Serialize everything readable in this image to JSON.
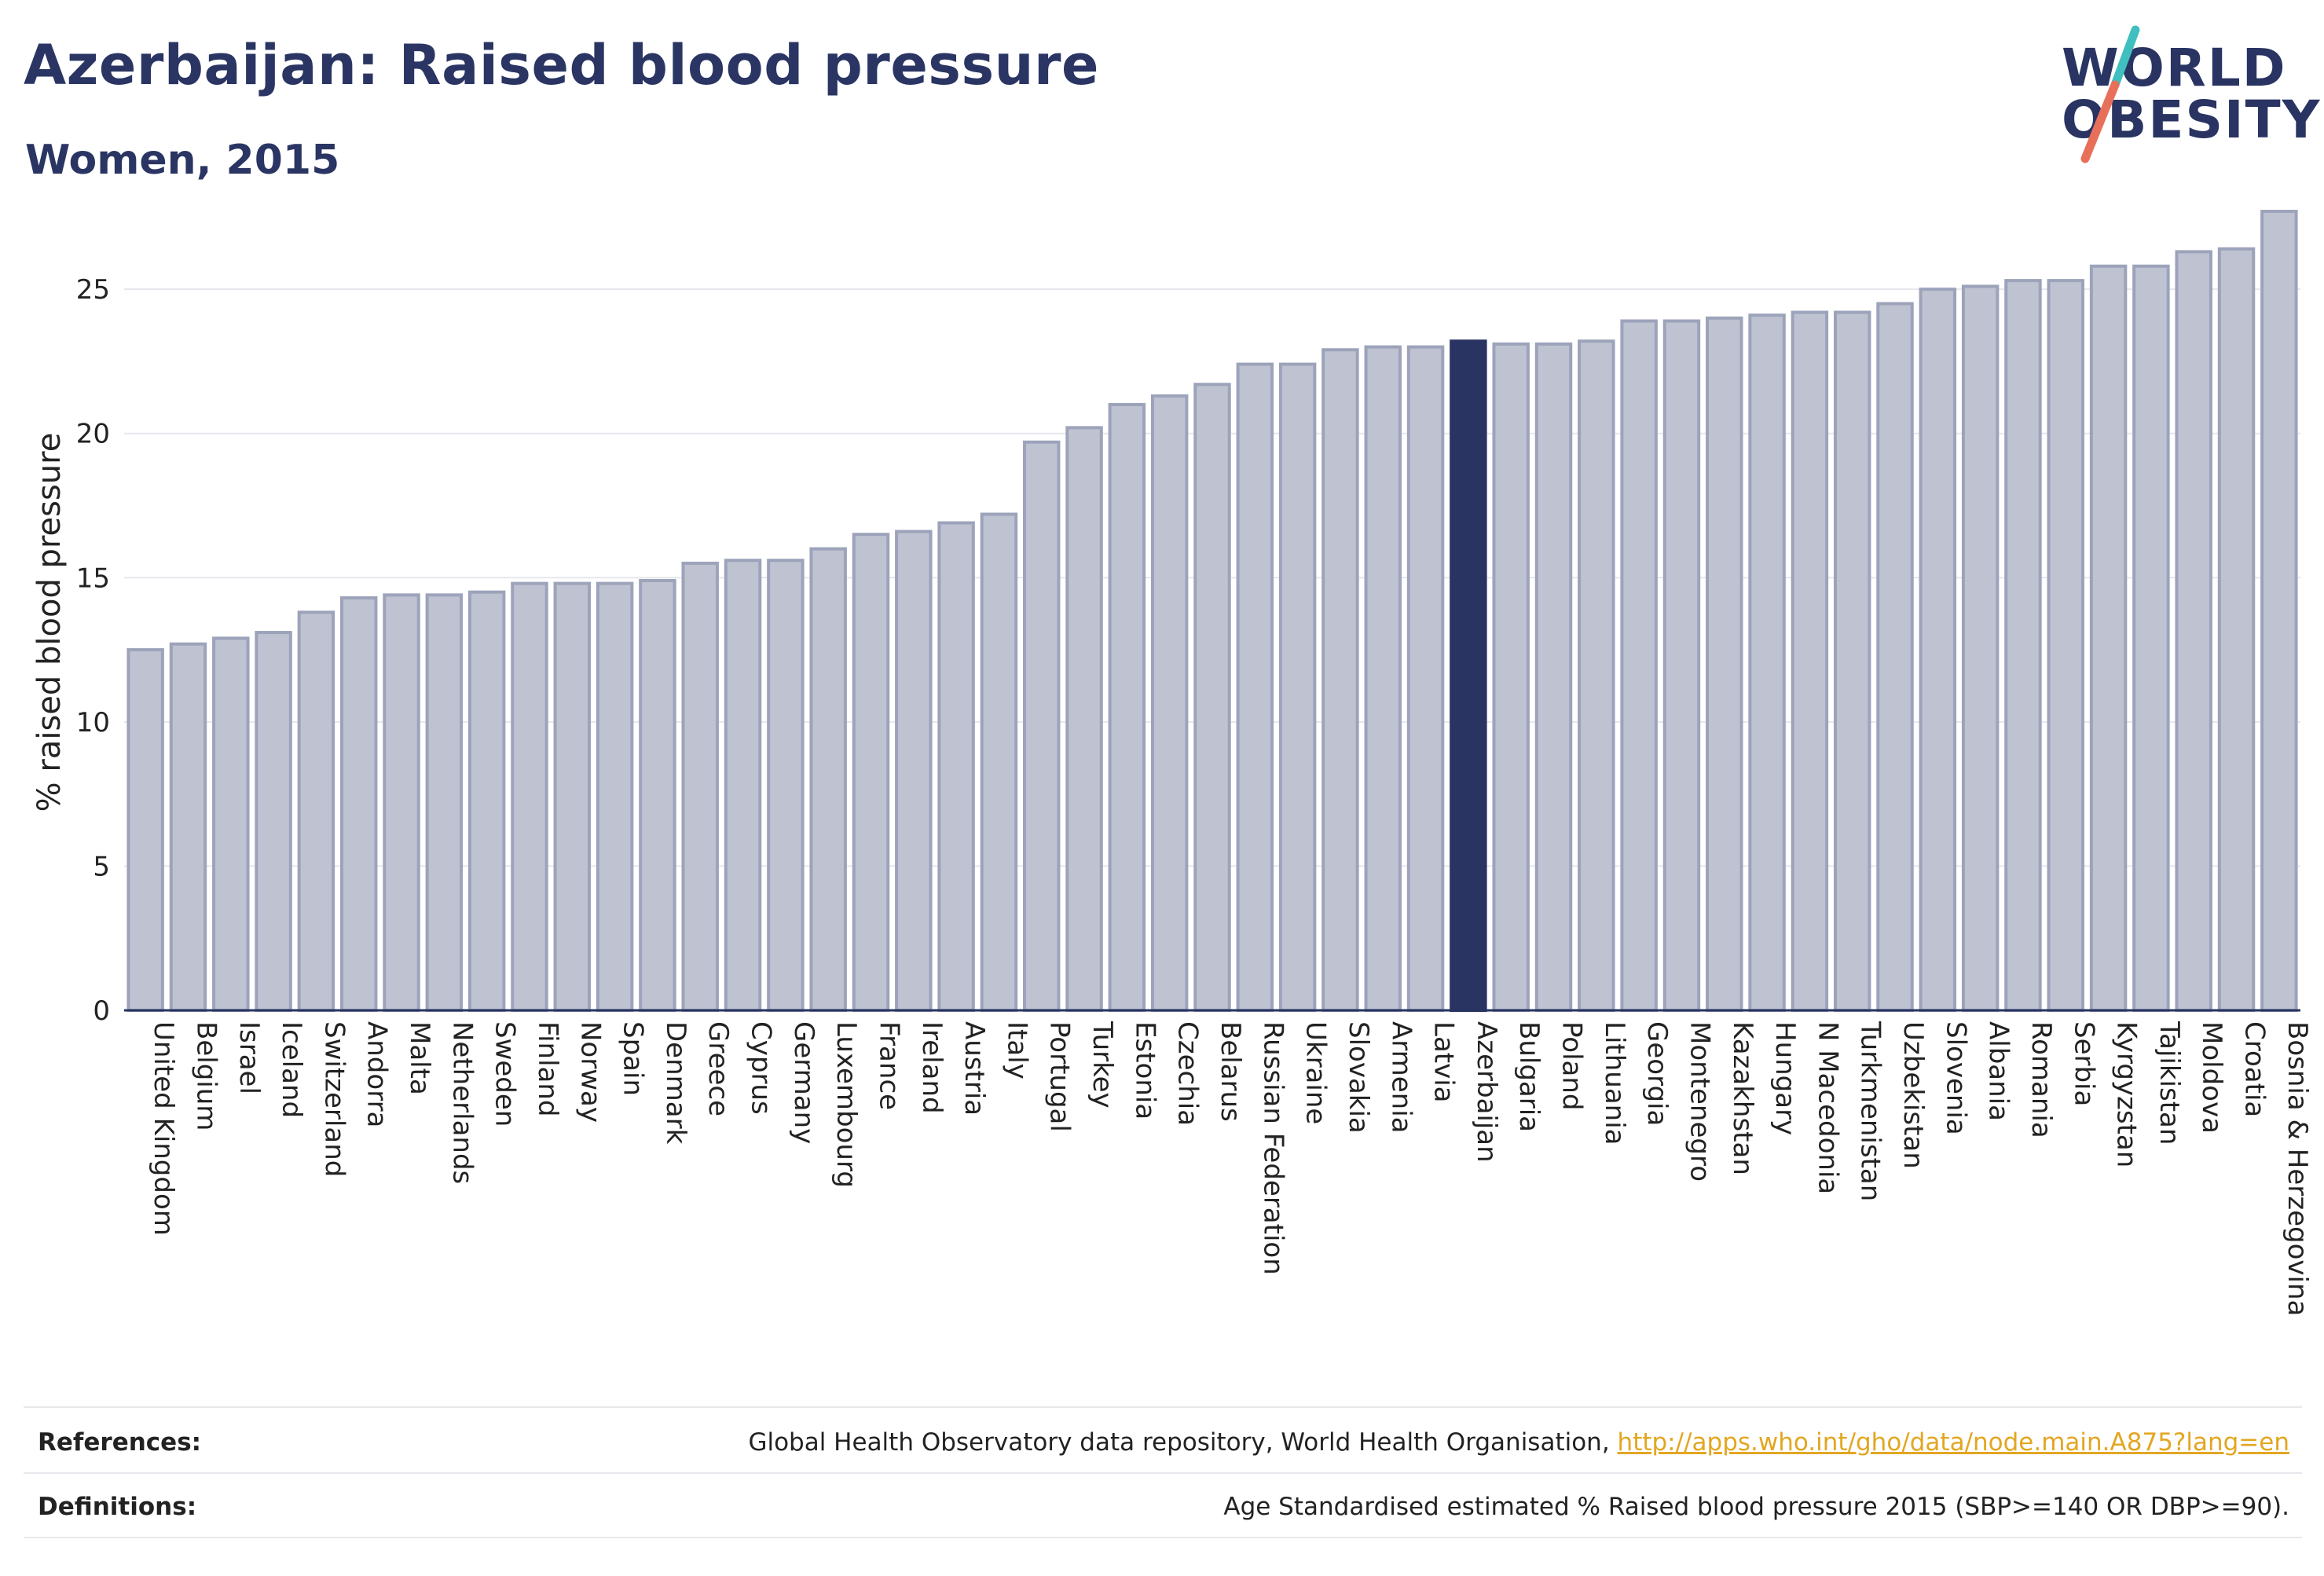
{
  "header": {
    "title": "Azerbaijan: Raised blood pressure",
    "subtitle": "Women, 2015"
  },
  "logo": {
    "line1": "WORLD",
    "line2": "OBESITY",
    "colors": {
      "text": "#293462",
      "slash_top": "#3fbfbf",
      "slash_bottom": "#e8705a"
    }
  },
  "chart_data": {
    "type": "bar",
    "ylabel": "% raised blood pressure",
    "ylim": [
      0,
      28
    ],
    "yticks": [
      0,
      5,
      10,
      15,
      20,
      25
    ],
    "grid": true,
    "highlight": "Azerbaijan",
    "colors": {
      "bar": "#bfc3d1",
      "bar_edge": "#9ca3ba",
      "highlight": "#293462",
      "grid": "#e6e7ec",
      "axis": "#293462"
    },
    "categories": [
      "United Kingdom",
      "Belgium",
      "Israel",
      "Iceland",
      "Switzerland",
      "Andorra",
      "Malta",
      "Netherlands",
      "Sweden",
      "Finland",
      "Norway",
      "Spain",
      "Denmark",
      "Greece",
      "Cyprus",
      "Germany",
      "Luxembourg",
      "France",
      "Ireland",
      "Austria",
      "Italy",
      "Portugal",
      "Turkey",
      "Estonia",
      "Czechia",
      "Belarus",
      "Russian Federation",
      "Ukraine",
      "Slovakia",
      "Armenia",
      "Latvia",
      "Azerbaijan",
      "Bulgaria",
      "Poland",
      "Lithuania",
      "Georgia",
      "Montenegro",
      "Kazakhstan",
      "Hungary",
      "N Macedonia",
      "Turkmenistan",
      "Uzbekistan",
      "Slovenia",
      "Albania",
      "Romania",
      "Serbia",
      "Kyrgyzstan",
      "Tajikistan",
      "Moldova",
      "Croatia",
      "Bosnia & Herzegovina"
    ],
    "values": [
      12.5,
      12.7,
      12.9,
      13.1,
      13.8,
      14.3,
      14.4,
      14.4,
      14.5,
      14.8,
      14.8,
      14.8,
      14.9,
      15.5,
      15.6,
      15.6,
      16.0,
      16.5,
      16.6,
      16.9,
      17.2,
      19.7,
      20.2,
      21.0,
      21.3,
      21.7,
      22.4,
      22.4,
      22.9,
      23.0,
      23.0,
      23.2,
      23.1,
      23.1,
      23.2,
      23.9,
      23.9,
      24.0,
      24.1,
      24.2,
      24.2,
      24.5,
      25.0,
      25.1,
      25.3,
      25.3,
      25.8,
      25.8,
      26.3,
      26.4,
      27.7
    ]
  },
  "footer": {
    "references_label": "References:",
    "references_text": "Global Health Observatory data repository, World Health Organisation, ",
    "references_link": "http://apps.who.int/gho/data/node.main.A875?lang=en",
    "definitions_label": "Definitions:",
    "definitions_text": "Age Standardised estimated % Raised blood pressure 2015 (SBP>=140 OR DBP>=90)."
  }
}
